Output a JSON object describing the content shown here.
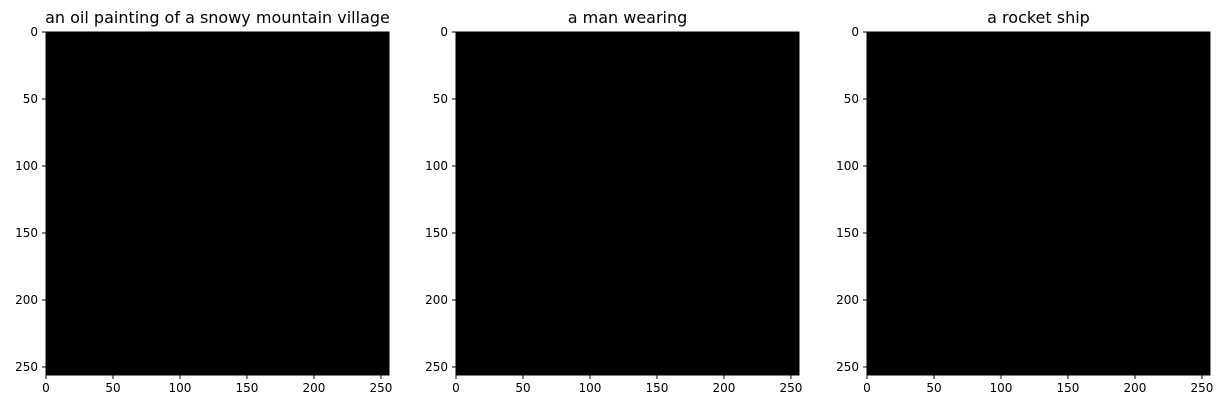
{
  "chart_data": [
    {
      "type": "heatmap",
      "title": "an oil painting of a snowy mountain village",
      "xlim": [
        0,
        256
      ],
      "ylim": [
        256,
        0
      ],
      "xticks": [
        0,
        50,
        100,
        150,
        200,
        250
      ],
      "yticks": [
        0,
        50,
        100,
        150,
        200,
        250
      ],
      "fill": "#000000",
      "grid": false
    },
    {
      "type": "heatmap",
      "title": "a man wearing",
      "xlim": [
        0,
        256
      ],
      "ylim": [
        256,
        0
      ],
      "xticks": [
        0,
        50,
        100,
        150,
        200,
        250
      ],
      "yticks": [
        0,
        50,
        100,
        150,
        200,
        250
      ],
      "fill": "#000000",
      "grid": false
    },
    {
      "type": "heatmap",
      "title": "a rocket ship",
      "xlim": [
        0,
        256
      ],
      "ylim": [
        256,
        0
      ],
      "xticks": [
        0,
        50,
        100,
        150,
        200,
        250
      ],
      "yticks": [
        0,
        50,
        100,
        150,
        200,
        250
      ],
      "fill": "#000000",
      "grid": false
    }
  ]
}
